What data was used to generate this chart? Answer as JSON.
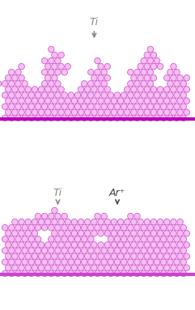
{
  "atom_edge_color": "#cc44cc",
  "atom_face_color": "#f5c0f0",
  "bg_color": "#ffffff",
  "fig_width": 2.41,
  "fig_height": 3.83,
  "label_color_ti": "#888888",
  "label_color_ar": "#444444",
  "arrow_color_ti": "#888888",
  "arrow_color_ar": "#444444",
  "top_label": "Ti",
  "bottom_label1": "Ti",
  "bottom_label2": "Ar⁺",
  "substrate_line_color": "#bb00bb",
  "substrate_line_color2": "#cc44cc"
}
